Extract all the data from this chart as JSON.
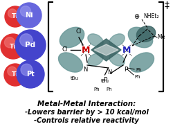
{
  "title_line1": "Metal-Metal Interaction:",
  "title_line2": "-Lowers barrier by > 10 kcal/mol",
  "title_line3": "-Controls relative reactivity",
  "ti_color": "#e03030",
  "ti_highlight": "#f07878",
  "ni_color": "#6666dd",
  "pd_color": "#4444cc",
  "pt_color": "#4444cc",
  "m_highlight": "#9999ee",
  "lobe_color": "#6a9898",
  "lobe_dark": "#3d6666",
  "bracket_color": "#000000",
  "background_color": "#ffffff",
  "text_color": "#000000",
  "M_left_color": "#cc0000",
  "M_right_color": "#2222bb"
}
